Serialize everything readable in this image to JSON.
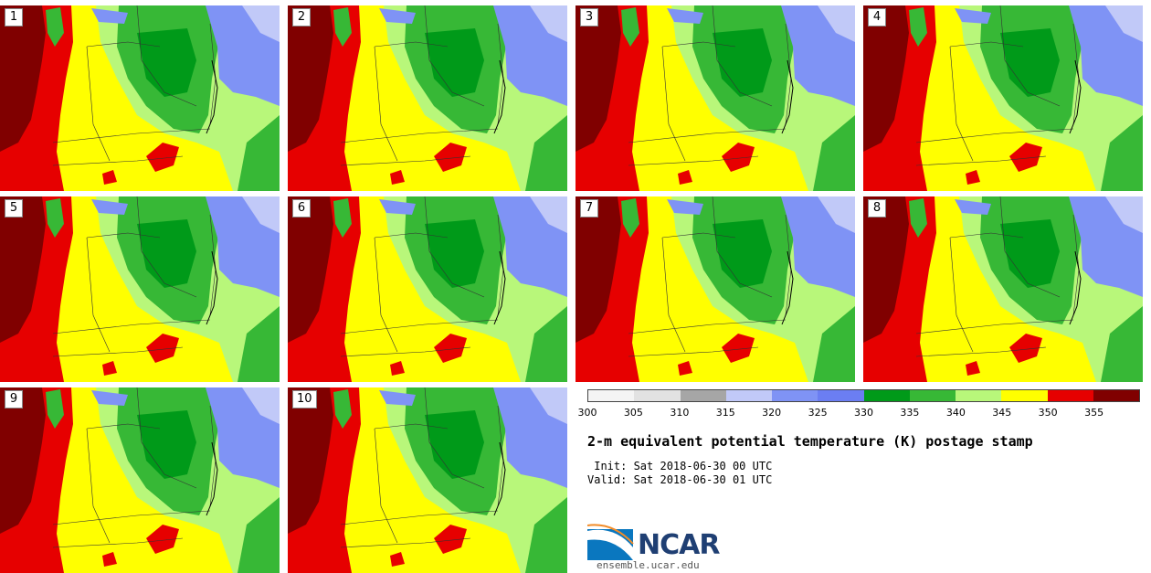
{
  "panels": [
    "1",
    "2",
    "3",
    "4",
    "5",
    "6",
    "7",
    "8",
    "9",
    "10"
  ],
  "colorbar": {
    "ticks": [
      "300",
      "305",
      "310",
      "315",
      "320",
      "325",
      "330",
      "335",
      "340",
      "345",
      "350",
      "355"
    ],
    "colors": [
      "#f4f4f4",
      "#e2e2e2",
      "#a6a6a6",
      "#c1c9f8",
      "#7f93f5",
      "#6b7ef2",
      "#009a19",
      "#37b836",
      "#b8f77a",
      "#ffff00",
      "#e60000",
      "#800000"
    ]
  },
  "title": "2-m equivalent potential temperature (K) postage stamp",
  "init": " Init: Sat 2018-06-30 00 UTC",
  "valid": "Valid: Sat 2018-06-30 01 UTC",
  "logo": {
    "text": "NCAR",
    "color": "#1f3f73",
    "accent": "#0a77bf"
  },
  "site": "ensemble.ucar.edu"
}
